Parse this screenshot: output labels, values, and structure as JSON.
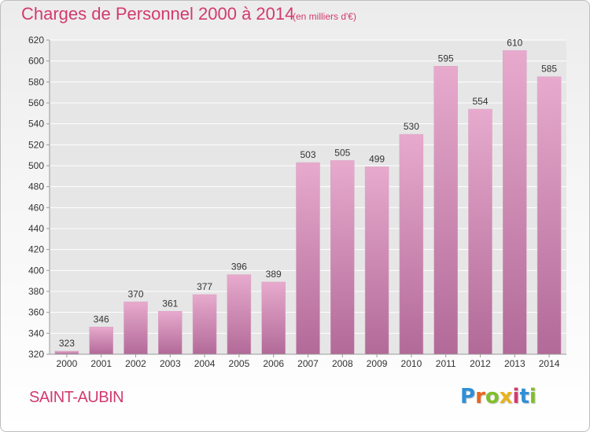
{
  "title": "Charges de Personnel 2000 à 2014",
  "subtitle": "(en milliers d'€)",
  "location": "SAINT-AUBIN",
  "brand": {
    "text": "Proxiti",
    "letter_colors": [
      "#2f8fd8",
      "#e8661e",
      "#7fbf2a",
      "#e8b31e",
      "#d23a6f",
      "#2f8fd8",
      "#7fbf2a"
    ]
  },
  "colors": {
    "accent": "#d23a6f",
    "bar_top": "#e7aacd",
    "bar_bottom": "#b26a98",
    "axis": "#999999",
    "grid": "#ffffff",
    "text": "#333333"
  },
  "chart_data": {
    "type": "bar",
    "title": "Charges de Personnel 2000 à 2014",
    "subtitle": "(en milliers d'€)",
    "xlabel": "",
    "ylabel": "",
    "categories": [
      "2000",
      "2001",
      "2002",
      "2003",
      "2004",
      "2005",
      "2006",
      "2007",
      "2008",
      "2009",
      "2010",
      "2011",
      "2012",
      "2013",
      "2014"
    ],
    "values": [
      323,
      346,
      370,
      361,
      377,
      396,
      389,
      503,
      505,
      499,
      530,
      595,
      554,
      610,
      585
    ],
    "ylim": [
      320,
      620
    ],
    "yticks": [
      320,
      340,
      360,
      380,
      400,
      420,
      440,
      460,
      480,
      500,
      520,
      540,
      560,
      580,
      600,
      620
    ],
    "grid": true,
    "data_labels": true,
    "legend": "none"
  }
}
